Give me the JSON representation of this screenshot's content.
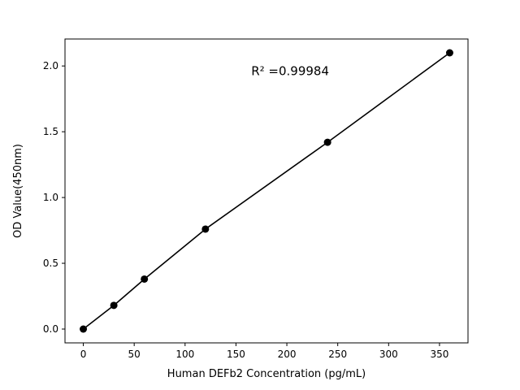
{
  "figure": {
    "background": "#ffffff",
    "axis_color": "#000000",
    "line_color": "#000000",
    "marker_color": "#000000"
  },
  "chart_data": {
    "type": "scatter",
    "title": "",
    "x": [
      0,
      30,
      60,
      120,
      240,
      360
    ],
    "y": [
      0.0,
      0.18,
      0.38,
      0.76,
      1.42,
      2.1
    ],
    "fit_line": true,
    "annotation": "R² =0.99984",
    "annotation_pos": {
      "x": 165,
      "y": 1.93
    },
    "xlabel": "Human DEFb2 Concentration (pg/mL)",
    "ylabel": "OD Value(450nm)",
    "xticks": [
      0,
      50,
      100,
      150,
      200,
      250,
      300,
      350
    ],
    "xtick_labels": [
      "0",
      "50",
      "100",
      "150",
      "200",
      "250",
      "300",
      "350"
    ],
    "yticks": [
      0.0,
      0.5,
      1.0,
      1.5,
      2.0
    ],
    "ytick_labels": [
      "0.0",
      "0.5",
      "1.0",
      "1.5",
      "2.0"
    ],
    "xlim": [
      -18,
      378
    ],
    "ylim": [
      -0.105,
      2.205
    ],
    "grid": false,
    "legend": null
  }
}
